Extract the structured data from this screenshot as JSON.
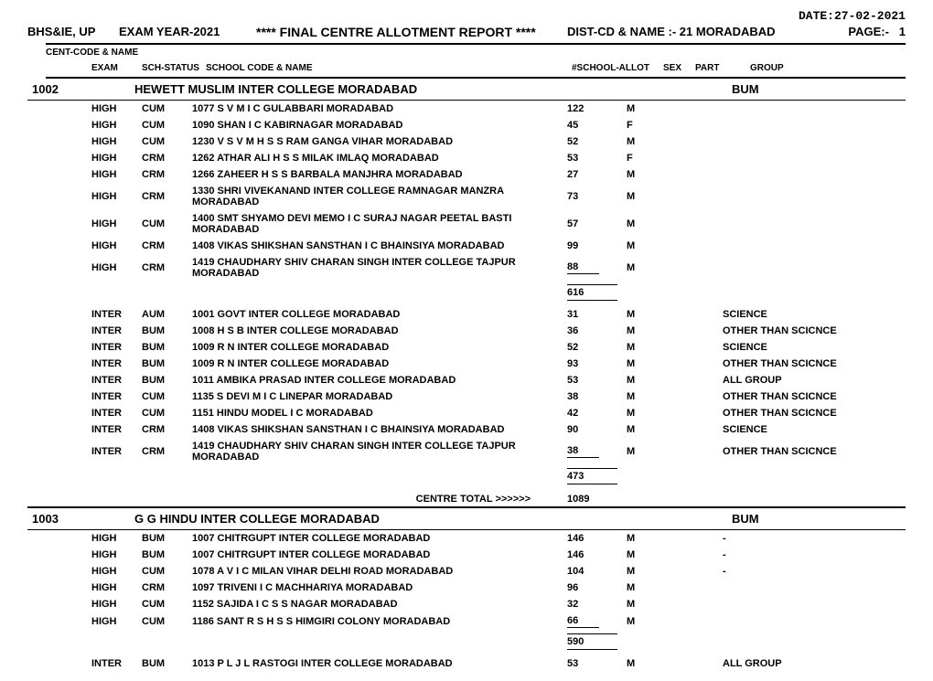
{
  "date": "DATE:27-02-2021",
  "board": "BHS&IE, UP",
  "year": "EXAM YEAR-2021",
  "title": "****  FINAL CENTRE  ALLOTMENT REPORT   ****",
  "dist_label": "DIST-CD & NAME :-",
  "dist_value": "21 MORADABAD",
  "page_label": "PAGE:-",
  "page_value": "1",
  "sub_header": "CENT-CODE & NAME",
  "cols": {
    "exam": "EXAM",
    "status": "SCH-STATUS",
    "school": "SCHOOL CODE & NAME",
    "allot": "#SCHOOL-ALLOT",
    "sex": "SEX",
    "part": "PART",
    "group": "GROUP"
  },
  "centres": [
    {
      "code": "1002",
      "name": "HEWETT MUSLIM INTER COLLEGE MORADABAD",
      "group": "BUM",
      "sections": [
        {
          "rows": [
            {
              "exam": "HIGH",
              "status": "CUM",
              "school": "1077  S V M I C GULABBARI MORADABAD",
              "allot": "122",
              "sex": "M",
              "group": ""
            },
            {
              "exam": "HIGH",
              "status": "CUM",
              "school": "1090  SHAN I C KABIRNAGAR MORADABAD",
              "allot": "45",
              "sex": "F",
              "group": ""
            },
            {
              "exam": "HIGH",
              "status": "CUM",
              "school": "1230  V S V M H S S RAM GANGA VIHAR MORADABAD",
              "allot": "52",
              "sex": "M",
              "group": ""
            },
            {
              "exam": "HIGH",
              "status": "CRM",
              "school": "1262  ATHAR ALI H S S MILAK IMLAQ MORADABAD",
              "allot": "53",
              "sex": "F",
              "group": ""
            },
            {
              "exam": "HIGH",
              "status": "CRM",
              "school": "1266  ZAHEER H S S BARBALA MANJHRA MORADABAD",
              "allot": "27",
              "sex": "M",
              "group": ""
            },
            {
              "exam": "HIGH",
              "status": "CRM",
              "school": "1330  SHRI VIVEKANAND INTER COLLEGE RAMNAGAR MANZRA MORADABAD",
              "allot": "73",
              "sex": "M",
              "group": ""
            },
            {
              "exam": "HIGH",
              "status": "CUM",
              "school": "1400  SMT SHYAMO DEVI MEMO I C SURAJ NAGAR PEETAL BASTI MORADABAD",
              "allot": "57",
              "sex": "M",
              "group": ""
            },
            {
              "exam": "HIGH",
              "status": "CRM",
              "school": "1408  VIKAS SHIKSHAN SANSTHAN I C BHAINSIYA MORADABAD",
              "allot": "99",
              "sex": "M",
              "group": ""
            },
            {
              "exam": "HIGH",
              "status": "CRM",
              "school": "1419  CHAUDHARY SHIV CHARAN SINGH INTER COLLEGE TAJPUR MORADABAD",
              "allot": "88",
              "sex": "M",
              "group": "",
              "underline": true
            }
          ],
          "subtotal": "616"
        },
        {
          "rows": [
            {
              "exam": "INTER",
              "status": "AUM",
              "school": "1001  GOVT INTER COLLEGE MORADABAD",
              "allot": "31",
              "sex": "M",
              "group": "SCIENCE"
            },
            {
              "exam": "INTER",
              "status": "BUM",
              "school": "1008  H S B INTER COLLEGE MORADABAD",
              "allot": "36",
              "sex": "M",
              "group": "OTHER THAN SCICNCE"
            },
            {
              "exam": "INTER",
              "status": "BUM",
              "school": "1009  R N INTER COLLEGE MORADABAD",
              "allot": "52",
              "sex": "M",
              "group": "SCIENCE"
            },
            {
              "exam": "INTER",
              "status": "BUM",
              "school": "1009  R N INTER COLLEGE MORADABAD",
              "allot": "93",
              "sex": "M",
              "group": "OTHER THAN SCICNCE"
            },
            {
              "exam": "INTER",
              "status": "BUM",
              "school": "1011  AMBIKA PRASAD INTER COLLEGE MORADABAD",
              "allot": "53",
              "sex": "M",
              "group": "ALL GROUP"
            },
            {
              "exam": "INTER",
              "status": "CUM",
              "school": "1135  S DEVI M I C LINEPAR MORADABAD",
              "allot": "38",
              "sex": "M",
              "group": "OTHER THAN SCICNCE"
            },
            {
              "exam": "INTER",
              "status": "CUM",
              "school": "1151  HINDU MODEL I C MORADABAD",
              "allot": "42",
              "sex": "M",
              "group": "OTHER THAN SCICNCE"
            },
            {
              "exam": "INTER",
              "status": "CRM",
              "school": "1408  VIKAS SHIKSHAN SANSTHAN I C BHAINSIYA MORADABAD",
              "allot": "90",
              "sex": "M",
              "group": "SCIENCE"
            },
            {
              "exam": "INTER",
              "status": "CRM",
              "school": "1419  CHAUDHARY SHIV CHARAN SINGH INTER COLLEGE TAJPUR MORADABAD",
              "allot": "38",
              "sex": "M",
              "group": "OTHER THAN SCICNCE",
              "underline": true
            }
          ],
          "subtotal": "473"
        }
      ],
      "centre_total_label": "CENTRE TOTAL >>>>>>",
      "centre_total": "1089"
    },
    {
      "code": "1003",
      "name": "G G HINDU INTER COLLEGE MORADABAD",
      "group": "BUM",
      "sections": [
        {
          "rows": [
            {
              "exam": "HIGH",
              "status": "BUM",
              "school": "1007  CHITRGUPT INTER COLLEGE MORADABAD",
              "allot": "146",
              "sex": "M",
              "group": "-"
            },
            {
              "exam": "HIGH",
              "status": "BUM",
              "school": "1007  CHITRGUPT INTER COLLEGE MORADABAD",
              "allot": "146",
              "sex": "M",
              "group": "-"
            },
            {
              "exam": "HIGH",
              "status": "CUM",
              "school": "1078  A V I C MILAN VIHAR DELHI ROAD MORADABAD",
              "allot": "104",
              "sex": "M",
              "group": "-"
            },
            {
              "exam": "HIGH",
              "status": "CRM",
              "school": "1097  TRIVENI I C MACHHARIYA MORADABAD",
              "allot": "96",
              "sex": "M",
              "group": ""
            },
            {
              "exam": "HIGH",
              "status": "CUM",
              "school": "1152  SAJIDA I C S S NAGAR MORADABAD",
              "allot": "32",
              "sex": "M",
              "group": ""
            },
            {
              "exam": "HIGH",
              "status": "CUM",
              "school": "1186  SANT R S H S S HIMGIRI COLONY MORADABAD",
              "allot": "66",
              "sex": "M",
              "group": "",
              "underline": true
            }
          ],
          "subtotal": "590"
        },
        {
          "rows": [
            {
              "exam": "INTER",
              "status": "BUM",
              "school": "1013  P L J L RASTOGI INTER COLLEGE MORADABAD",
              "allot": "53",
              "sex": "M",
              "group": "ALL GROUP"
            }
          ]
        }
      ]
    }
  ]
}
